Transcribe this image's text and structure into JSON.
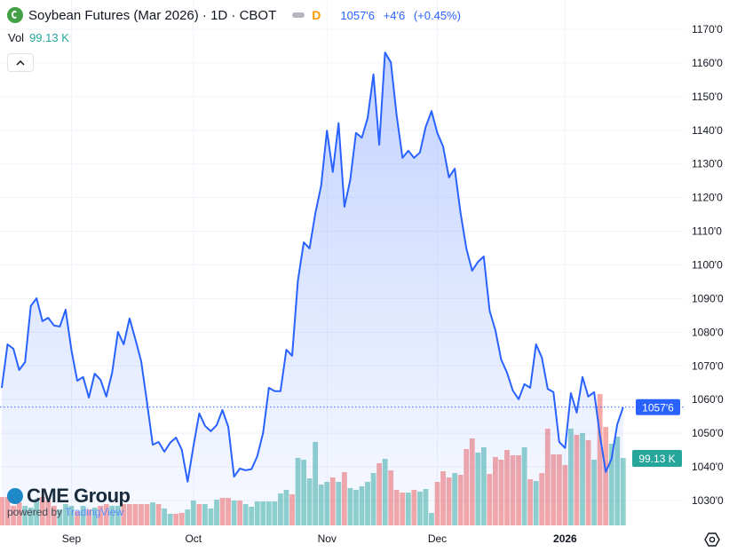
{
  "header": {
    "title": "Soybean Futures (Mar 2026) · 1D · CBOT",
    "interval_flag": "D",
    "last_price": "1057'6",
    "change": "+4'6",
    "change_pct": "(+0.45%)",
    "vol_label": "Vol",
    "vol_value": "99.13 K",
    "collapse_icon": "chevron-up-icon"
  },
  "branding": {
    "name": "CME Group",
    "powered_by": "powered by",
    "tradingview": "TradingView"
  },
  "colors": {
    "line": "#2962ff",
    "up_volume": "#26a69a",
    "down_volume": "#ef5350",
    "interval_flag": "#ff9800",
    "logo": "#43a047"
  },
  "chart_data": {
    "type": "area",
    "ylim": [
      1027,
      1172
    ],
    "y_ticks": [
      "1170'0",
      "1160'0",
      "1150'0",
      "1140'0",
      "1130'0",
      "1120'0",
      "1110'0",
      "1100'0",
      "1090'0",
      "1080'0",
      "1070'0",
      "1060'0",
      "1050'0",
      "1040'0",
      "1030'0"
    ],
    "y_tick_values": [
      1170,
      1160,
      1150,
      1140,
      1130,
      1120,
      1110,
      1100,
      1090,
      1080,
      1070,
      1060,
      1050,
      1040,
      1030
    ],
    "x_ticks": [
      {
        "label": "Sep",
        "index": 12
      },
      {
        "label": "Oct",
        "index": 33
      },
      {
        "label": "Nov",
        "index": 56
      },
      {
        "label": "Dec",
        "index": 75
      },
      {
        "label": "2026",
        "index": 97
      }
    ],
    "grid": true,
    "series": [
      {
        "type": "line",
        "values": [
          1063.5,
          1076.4,
          1075.1,
          1068.8,
          1071.1,
          1087.8,
          1090.1,
          1083.3,
          1084.3,
          1082.0,
          1081.7,
          1086.7,
          1074.6,
          1065.6,
          1066.7,
          1060.6,
          1067.7,
          1065.9,
          1060.9,
          1068.0,
          1080.1,
          1076.4,
          1084.1,
          1078.0,
          1071.4,
          1059.3,
          1046.6,
          1047.4,
          1044.5,
          1047.2,
          1048.7,
          1045.1,
          1035.6,
          1046.1,
          1055.9,
          1052.2,
          1050.6,
          1052.4,
          1056.9,
          1051.9,
          1037.1,
          1039.5,
          1039.0,
          1039.3,
          1043.2,
          1050.1,
          1063.5,
          1062.5,
          1062.5,
          1074.8,
          1073.0,
          1095.4,
          1106.7,
          1104.9,
          1115.4,
          1123.6,
          1139.9,
          1127.6,
          1142.1,
          1117.3,
          1125.2,
          1139.2,
          1137.8,
          1143.6,
          1156.6,
          1135.7,
          1163.1,
          1160.2,
          1144.4,
          1131.8,
          1133.9,
          1131.8,
          1133.4,
          1141.0,
          1145.7,
          1139.2,
          1135.2,
          1126.0,
          1128.6,
          1115.4,
          1104.9,
          1098.3,
          1100.9,
          1102.5,
          1086.4,
          1080.6,
          1071.9,
          1068.0,
          1062.7,
          1060.1,
          1064.6,
          1063.5,
          1076.4,
          1072.5,
          1063.2,
          1062.2,
          1047.4,
          1045.6,
          1061.9,
          1056.1,
          1066.7,
          1060.9,
          1062.2,
          1049.5,
          1038.5,
          1042.4,
          1052.7,
          1057.75
        ]
      },
      {
        "type": "volume",
        "unit": "K",
        "values": [
          41.7,
          41.7,
          28.7,
          33.9,
          28.7,
          26.1,
          39.1,
          41.7,
          36.5,
          28.7,
          23.5,
          31.3,
          28.7,
          20.9,
          28.7,
          23.5,
          26.1,
          28.7,
          31.3,
          28.7,
          28.7,
          31.3,
          31.3,
          31.3,
          31.3,
          31.3,
          33.9,
          31.3,
          24.8,
          17.0,
          17.0,
          18.3,
          23.5,
          36.5,
          31.3,
          31.3,
          24.8,
          37.8,
          40.4,
          40.4,
          36.5,
          36.5,
          31.3,
          27.4,
          35.2,
          35.2,
          35.2,
          35.2,
          46.9,
          52.2,
          45.6,
          99.1,
          96.5,
          69.1,
          122.6,
          60.0,
          63.9,
          70.4,
          63.9,
          78.2,
          54.8,
          52.2,
          57.4,
          63.9,
          76.9,
          91.3,
          97.8,
          80.8,
          52.2,
          48.2,
          48.2,
          52.2,
          49.6,
          53.5,
          18.3,
          63.9,
          79.5,
          70.4,
          76.9,
          74.3,
          112.1,
          127.8,
          106.9,
          114.8,
          75.6,
          100.4,
          96.5,
          110.8,
          103.0,
          103.0,
          114.8,
          67.8,
          65.2,
          76.9,
          142.1,
          104.3,
          104.3,
          88.7,
          142.1,
          133.0,
          135.6,
          125.2,
          96.5,
          193.0,
          144.7,
          120.0,
          130.4,
          99.13
        ],
        "direction": [
          "d",
          "d",
          "d",
          "d",
          "u",
          "u",
          "u",
          "d",
          "d",
          "d",
          "u",
          "u",
          "u",
          "d",
          "u",
          "d",
          "u",
          "d",
          "d",
          "u",
          "u",
          "d",
          "d",
          "d",
          "d",
          "d",
          "u",
          "d",
          "u",
          "u",
          "d",
          "d",
          "u",
          "u",
          "d",
          "u",
          "u",
          "u",
          "d",
          "d",
          "u",
          "d",
          "u",
          "u",
          "u",
          "u",
          "u",
          "u",
          "u",
          "u",
          "d",
          "u",
          "u",
          "u",
          "u",
          "u",
          "u",
          "d",
          "u",
          "d",
          "u",
          "u",
          "u",
          "u",
          "u",
          "d",
          "u",
          "d",
          "d",
          "d",
          "u",
          "d",
          "u",
          "u",
          "u",
          "d",
          "d",
          "d",
          "u",
          "d",
          "d",
          "d",
          "u",
          "u",
          "d",
          "d",
          "d",
          "d",
          "d",
          "d",
          "u",
          "d",
          "u",
          "d",
          "d",
          "d",
          "d",
          "d",
          "u",
          "d",
          "u",
          "d",
          "u",
          "d",
          "d",
          "u",
          "u",
          "u"
        ]
      }
    ],
    "last_price_label": "1057'6",
    "last_volume_label": "99.13 K"
  },
  "footer": {
    "settings_icon": "settings-icon"
  }
}
